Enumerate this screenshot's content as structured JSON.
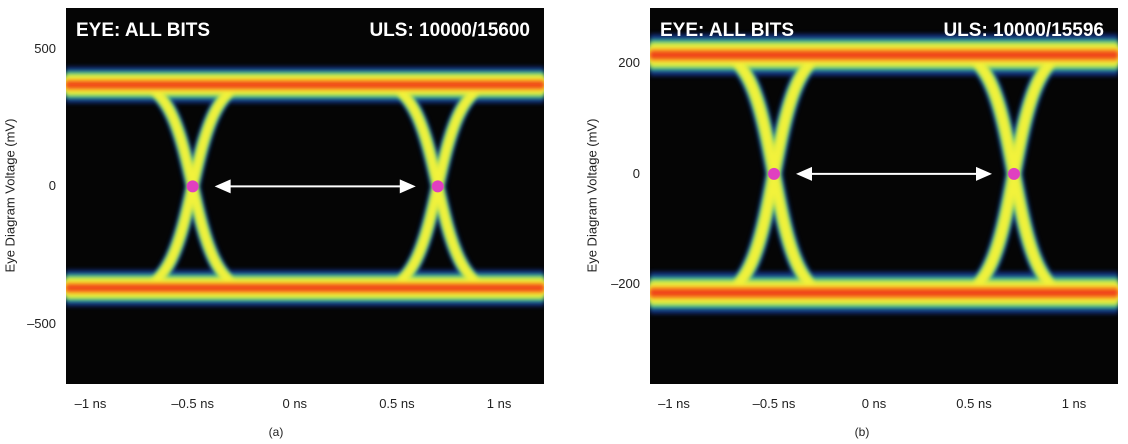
{
  "chart_data": [
    {
      "type": "eye-diagram",
      "title_left": "EYE: ALL BITS",
      "title_right": "ULS: 10000/15600",
      "ylabel": "Eye Diagram Voltage (mV)",
      "xlabel": "",
      "x_ticks": [
        {
          "value": -1.0,
          "label": "–1 ns"
        },
        {
          "value": -0.5,
          "label": "–0.5 ns"
        },
        {
          "value": 0.0,
          "label": "0 ns"
        },
        {
          "value": 0.5,
          "label": "0.5 ns"
        },
        {
          "value": 1.0,
          "label": "1 ns"
        }
      ],
      "y_ticks": [
        {
          "value": 500,
          "label": "500"
        },
        {
          "value": 0,
          "label": "0"
        },
        {
          "value": -500,
          "label": "–500"
        }
      ],
      "xlim": [
        -1.12,
        1.22
      ],
      "ylim": [
        -720,
        650
      ],
      "high_level": 370,
      "low_level": -370,
      "level_spread": 70,
      "crossings": [
        -0.5,
        0.7
      ],
      "eye_width_arrow": [
        -0.5,
        0.7
      ],
      "caption": "(a)"
    },
    {
      "type": "eye-diagram",
      "title_left": "EYE: ALL BITS",
      "title_right": "ULS: 10000/15596",
      "ylabel": "Eye Diagram Voltage (mV)",
      "xlabel": "",
      "x_ticks": [
        {
          "value": -1.0,
          "label": "–1 ns"
        },
        {
          "value": -0.5,
          "label": "–0.5 ns"
        },
        {
          "value": 0.0,
          "label": "0 ns"
        },
        {
          "value": 0.5,
          "label": "0.5 ns"
        },
        {
          "value": 1.0,
          "label": "1 ns"
        }
      ],
      "y_ticks": [
        {
          "value": 200,
          "label": "200"
        },
        {
          "value": 0,
          "label": "0"
        },
        {
          "value": -200,
          "label": "–200"
        }
      ],
      "xlim": [
        -1.12,
        1.22
      ],
      "ylim": [
        -380,
        300
      ],
      "high_level": 215,
      "low_level": -215,
      "level_spread": 40,
      "crossings": [
        -0.5,
        0.7
      ],
      "eye_width_arrow": [
        -0.5,
        0.7
      ],
      "caption": "(b)"
    }
  ]
}
